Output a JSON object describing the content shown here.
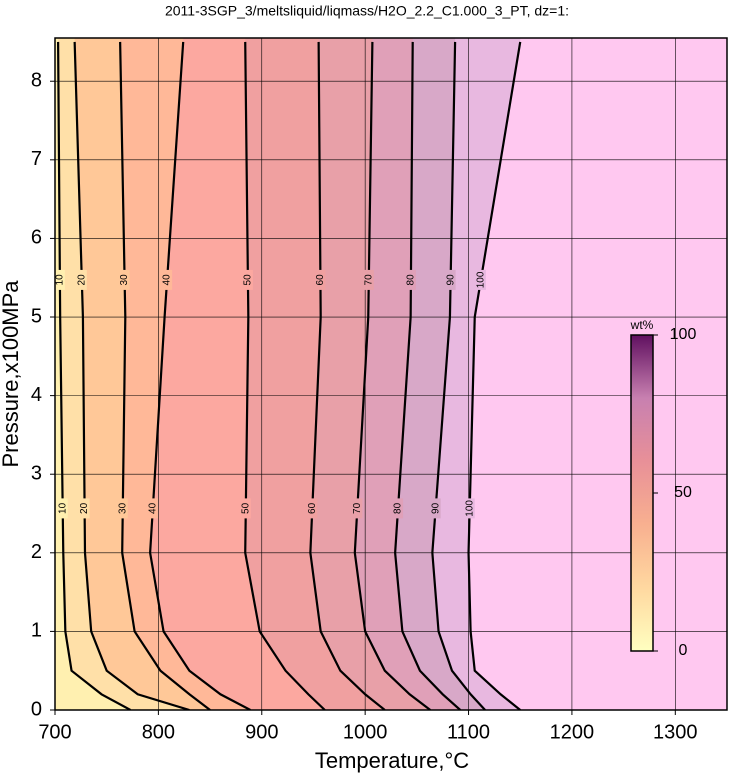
{
  "chart_data": {
    "type": "contour",
    "title": "2011-3SGP_3/meltsliquid/liqmass/H2O_2.2_C1.000_3_PT, dz=1:",
    "x_label": "Temperature,°C",
    "y_label": "Pressure,x100MPa",
    "xlim": [
      700,
      1350
    ],
    "ylim": [
      0,
      8.55
    ],
    "xticks": [
      700,
      800,
      900,
      1000,
      1100,
      1200,
      1300
    ],
    "yticks": [
      0,
      1,
      2,
      3,
      4,
      5,
      6,
      7,
      8
    ],
    "grid": true,
    "above_color": "#ffc8f0",
    "contours": [
      {
        "level": 10,
        "color": "#fff0b0",
        "x": [
          773,
          745,
          716,
          710,
          708,
          705,
          703
        ],
        "y": [
          0,
          0.2,
          0.5,
          1,
          2,
          5,
          8.5
        ]
      },
      {
        "level": 20,
        "color": "#ffe0a8",
        "x": [
          830,
          780,
          750,
          735,
          729,
          727,
          719
        ],
        "y": [
          0,
          0.2,
          0.5,
          1,
          2,
          5,
          8.5
        ]
      },
      {
        "level": 30,
        "color": "#ffc898",
        "x": [
          850,
          830,
          802,
          777,
          765,
          768,
          763
        ],
        "y": [
          0,
          0.2,
          0.5,
          1,
          2,
          5,
          8.5
        ]
      },
      {
        "level": 40,
        "color": "#ffb898",
        "x": [
          889,
          860,
          830,
          805,
          792,
          806,
          824
        ],
        "y": [
          0,
          0.2,
          0.5,
          1,
          2,
          5,
          8.5
        ]
      },
      {
        "level": 50,
        "color": "#fca8a0",
        "x": [
          961,
          945,
          923,
          898,
          884,
          887,
          884
        ],
        "y": [
          0,
          0.2,
          0.5,
          1,
          2,
          5,
          8.5
        ]
      },
      {
        "level": 60,
        "color": "#f0a0a0",
        "x": [
          1019,
          1000,
          976,
          957,
          947,
          957,
          955
        ],
        "y": [
          0,
          0.2,
          0.5,
          1,
          2,
          5,
          8.5
        ]
      },
      {
        "level": 70,
        "color": "#e8a0a8",
        "x": [
          1063,
          1043,
          1019,
          1000,
          990,
          1003,
          1007
        ],
        "y": [
          0,
          0.2,
          0.5,
          1,
          2,
          5,
          8.5
        ]
      },
      {
        "level": 80,
        "color": "#e0a0b8",
        "x": [
          1092,
          1075,
          1053,
          1036,
          1029,
          1044,
          1046
        ],
        "y": [
          0,
          0.2,
          0.5,
          1,
          2,
          5,
          8.5
        ]
      },
      {
        "level": 90,
        "color": "#d8a8c8",
        "x": [
          1116,
          1102,
          1084,
          1071,
          1065,
          1082,
          1087
        ],
        "y": [
          0,
          0.2,
          0.5,
          1,
          2,
          5,
          8.5
        ]
      },
      {
        "level": 100,
        "color": "#e8b8e0",
        "x": [
          1150,
          1131,
          1106,
          1102,
          1100,
          1106,
          1150
        ],
        "y": [
          0,
          0.2,
          0.5,
          1,
          2,
          5,
          8.5
        ]
      }
    ],
    "colorbar": {
      "label": "wt%",
      "lim": [
        0,
        100
      ],
      "ticks": [
        0,
        50,
        100
      ],
      "stops": [
        {
          "value": 0,
          "color": "#ffffc0"
        },
        {
          "value": 20,
          "color": "#ffd8a0"
        },
        {
          "value": 40,
          "color": "#f8b090"
        },
        {
          "value": 60,
          "color": "#e89098"
        },
        {
          "value": 80,
          "color": "#c880b0"
        },
        {
          "value": 100,
          "color": "#601060"
        }
      ]
    }
  }
}
